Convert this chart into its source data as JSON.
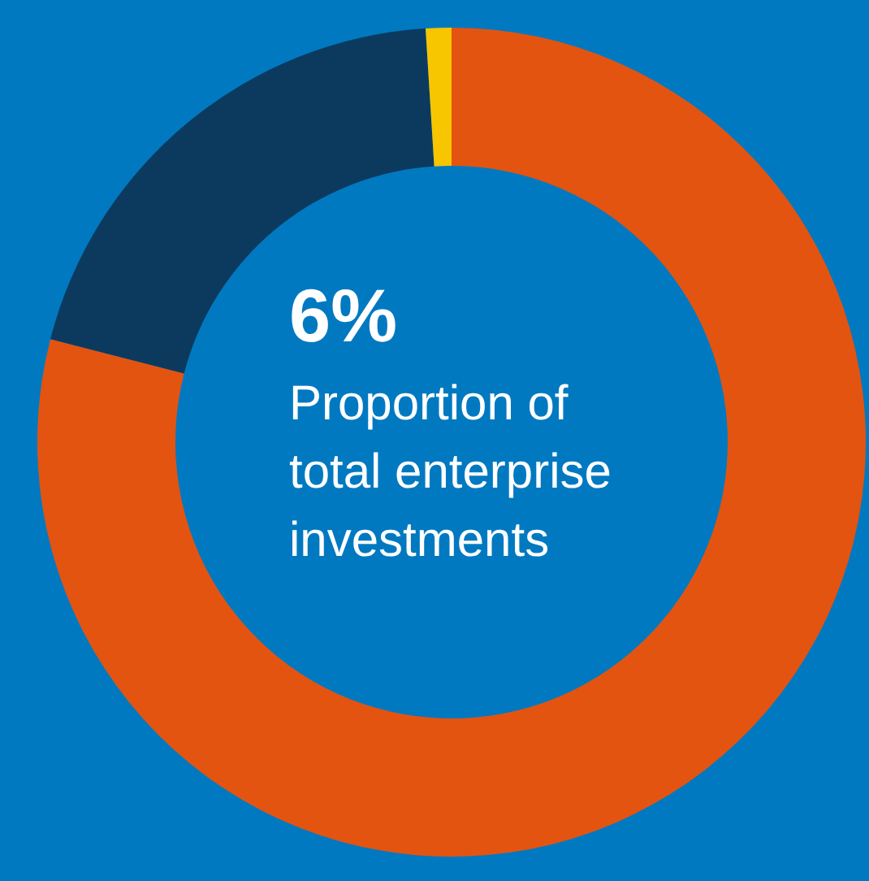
{
  "chart_data": {
    "type": "donut",
    "categories": [
      null,
      null,
      null
    ],
    "values": [
      79,
      20,
      1
    ],
    "colors": [
      "#e35411",
      "#0c3a5e",
      "#f7c600"
    ],
    "annotations": [
      "6%",
      "Proportion of total enterprise investments"
    ]
  }
}
